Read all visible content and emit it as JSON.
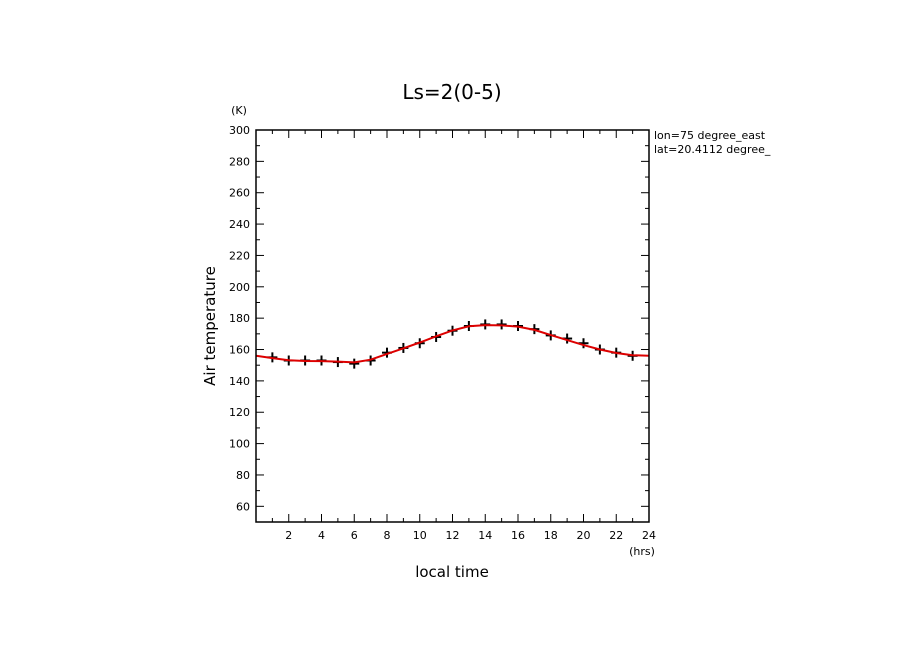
{
  "chart_data": {
    "type": "line",
    "title": "Ls=2(0-5)",
    "xlabel": "local time",
    "ylabel": "Air temperature",
    "x_unit": "(hrs)",
    "y_unit": "(K)",
    "xlim": [
      0,
      24
    ],
    "ylim": [
      50,
      300
    ],
    "x_ticks": [
      2,
      4,
      6,
      8,
      10,
      12,
      14,
      16,
      18,
      20,
      22,
      24
    ],
    "y_ticks": [
      60,
      80,
      100,
      120,
      140,
      160,
      180,
      200,
      220,
      240,
      260,
      280,
      300
    ],
    "annotations": [
      "lon=75 degree_east",
      "lat=20.4112 degree_"
    ],
    "grid": false,
    "series": [
      {
        "marker": "plus",
        "color": "#000000",
        "x": [
          1,
          2,
          3,
          4,
          5,
          6,
          7,
          8,
          9,
          10,
          11,
          12,
          13,
          14,
          15,
          16,
          17,
          18,
          19,
          20,
          21,
          22,
          23
        ],
        "y": [
          155,
          153,
          153,
          153,
          152,
          151,
          153,
          158,
          161,
          164,
          168,
          172,
          175,
          176,
          176,
          175,
          173,
          169,
          167,
          164,
          160,
          158,
          156
        ]
      },
      {
        "marker": "none",
        "color": "#dd0000",
        "x": [
          0,
          1,
          2,
          3,
          4,
          5,
          6,
          7,
          8,
          9,
          10,
          11,
          12,
          13,
          14,
          15,
          16,
          17,
          18,
          19,
          20,
          21,
          22,
          23,
          24
        ],
        "y": [
          156,
          154.5,
          153.2,
          152.7,
          152.6,
          152.3,
          151.8,
          153.5,
          157.2,
          160.8,
          164.5,
          168.4,
          172.2,
          174.8,
          175.6,
          175.4,
          174.6,
          172.5,
          169.2,
          166.0,
          162.8,
          160.0,
          157.8,
          156.4,
          156
        ]
      }
    ]
  }
}
